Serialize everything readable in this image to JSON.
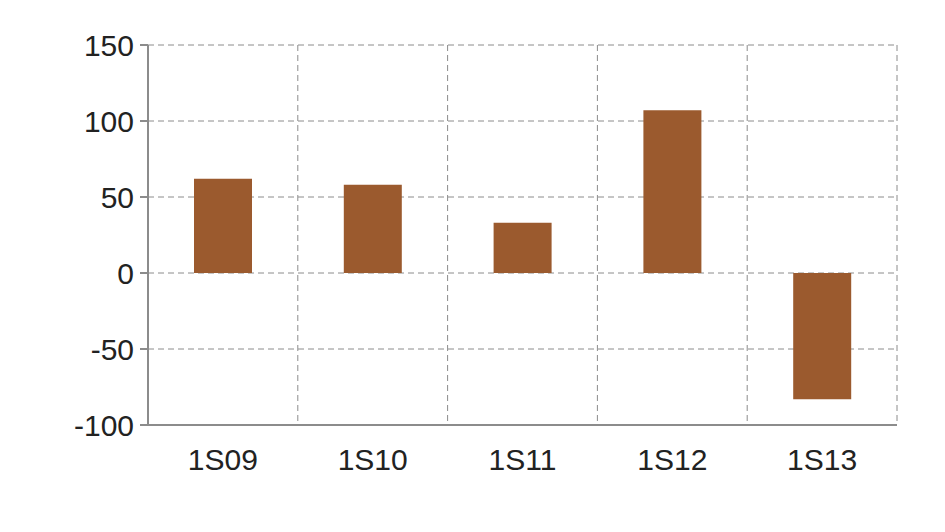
{
  "chart_data": {
    "type": "bar",
    "categories": [
      "1S09",
      "1S10",
      "1S11",
      "1S12",
      "1S13"
    ],
    "values": [
      62,
      58,
      33,
      107,
      -83
    ],
    "color": "#9b5a2e",
    "ylim": [
      -100,
      150
    ],
    "yticks": [
      -100,
      -50,
      0,
      50,
      100,
      150
    ],
    "grid": true
  }
}
